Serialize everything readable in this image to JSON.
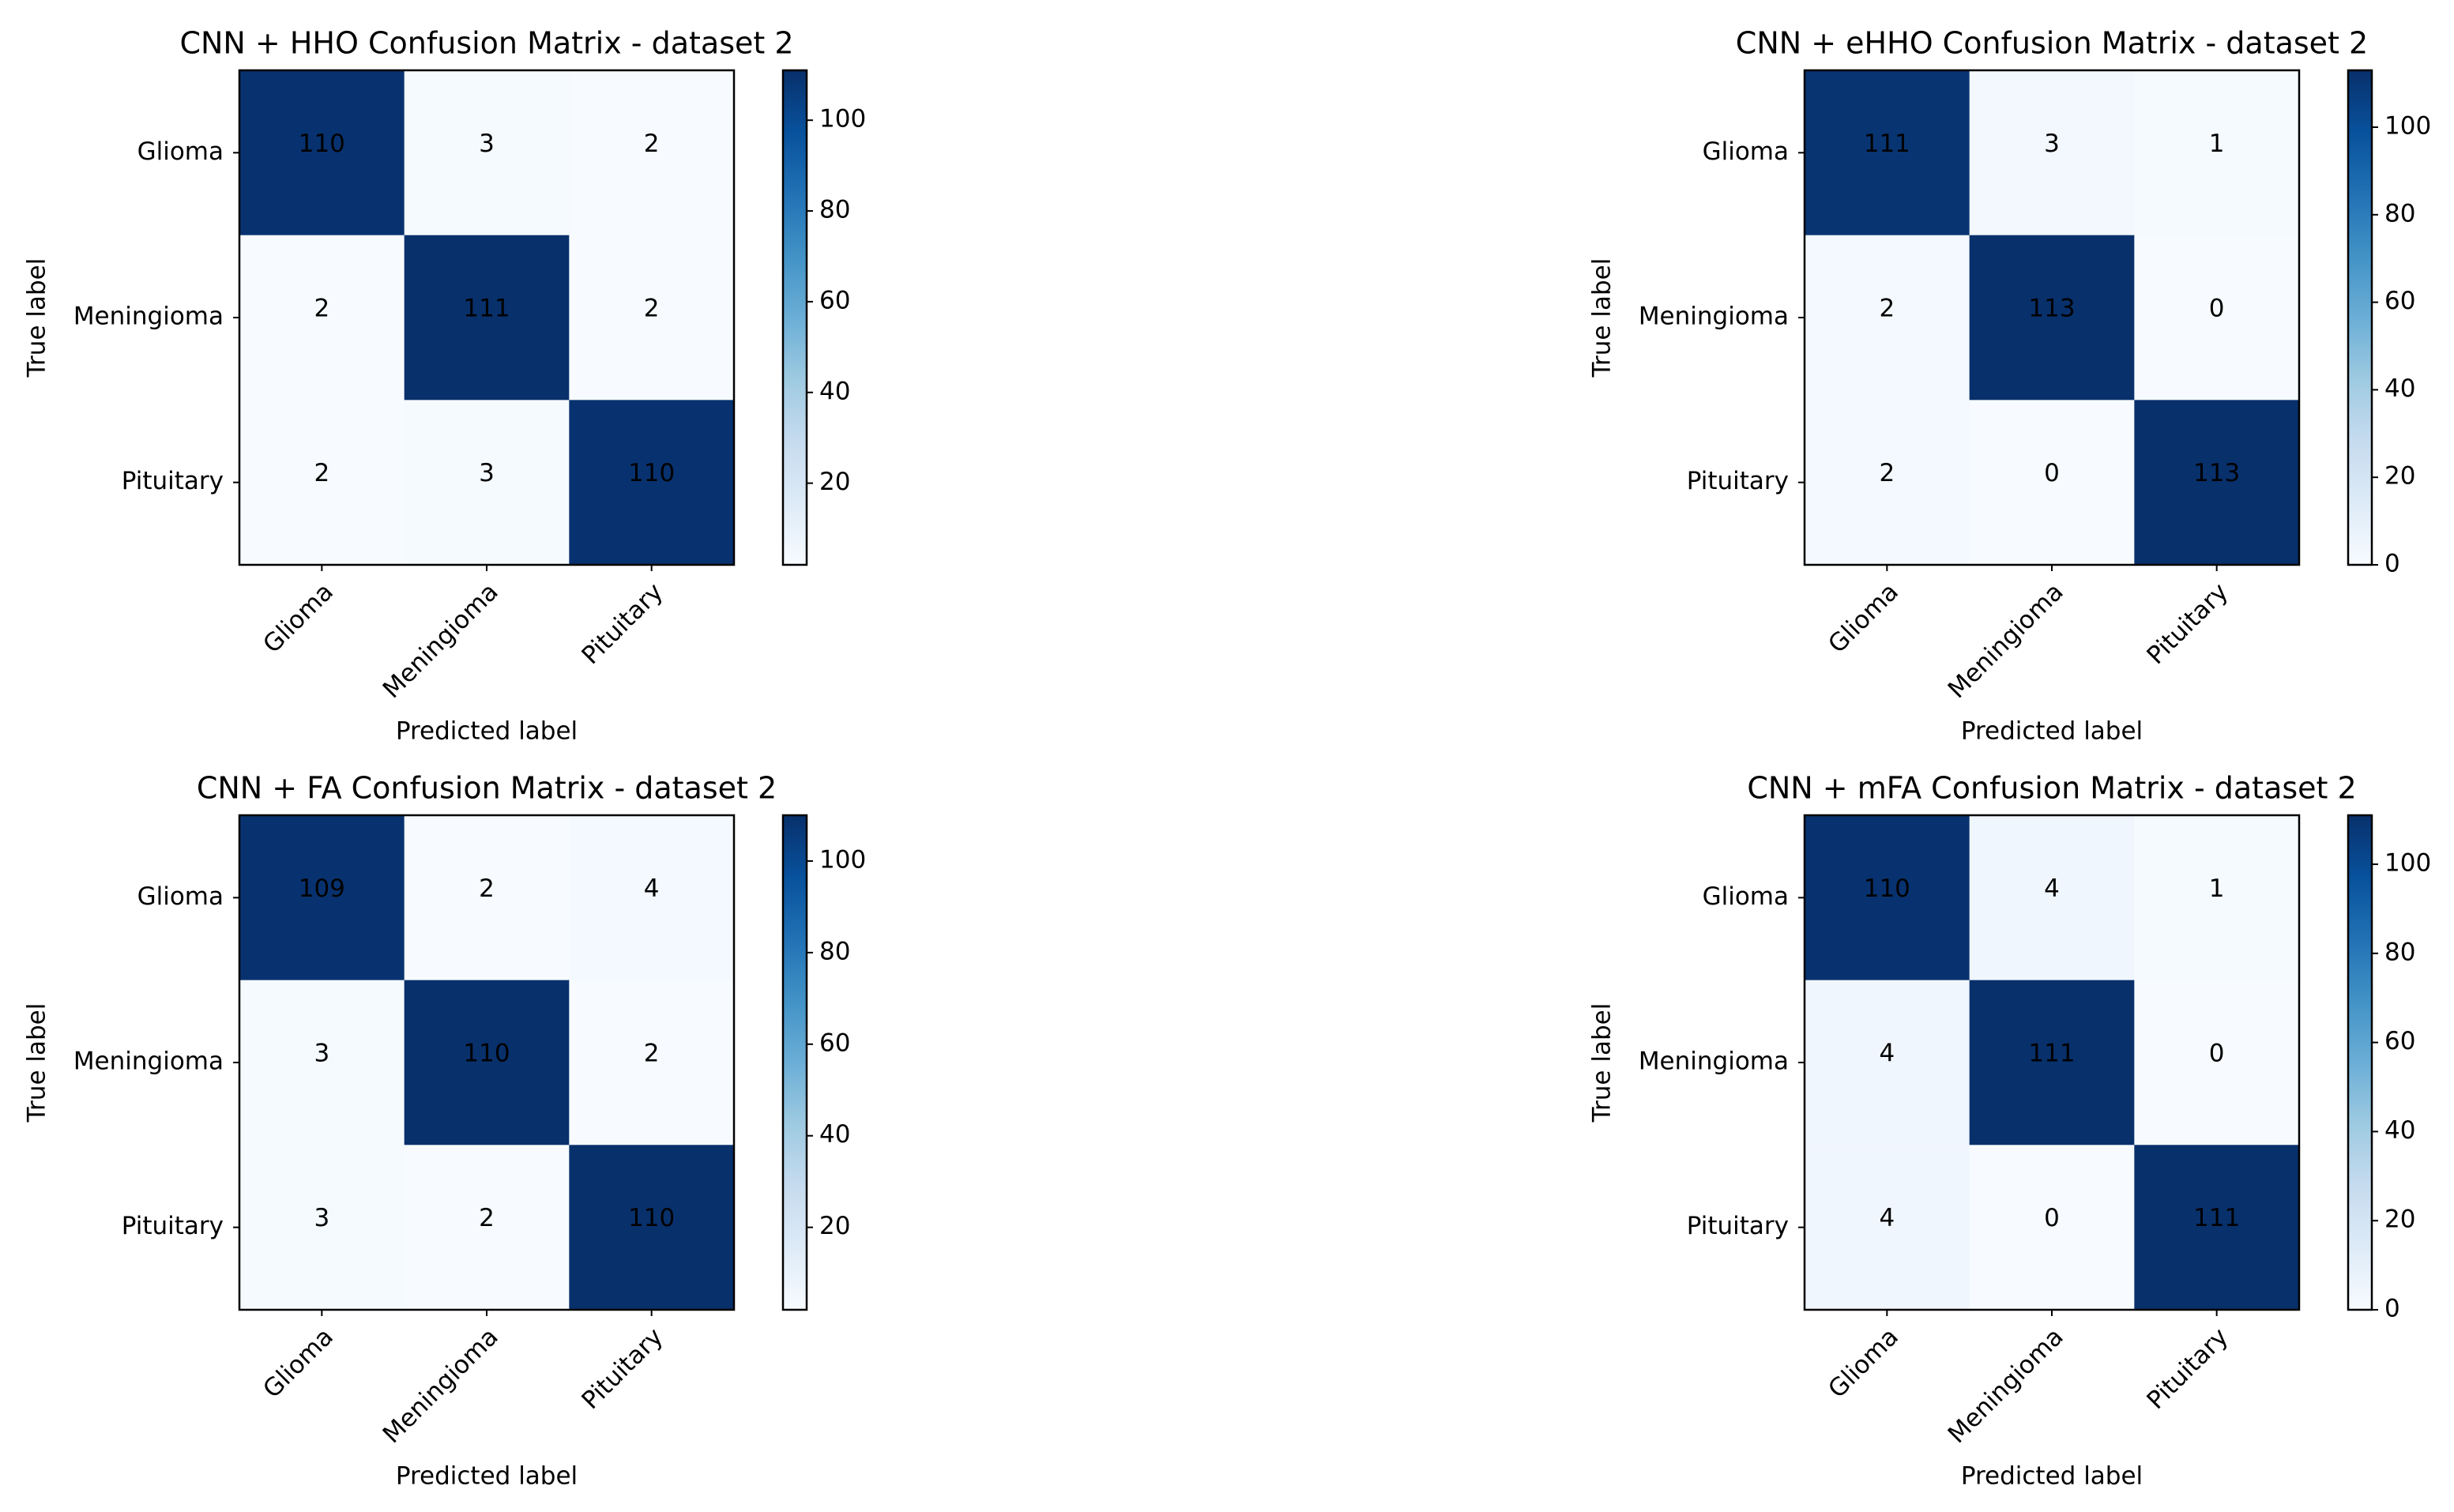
{
  "chart_data": [
    {
      "type": "heatmap",
      "title": "CNN + HHO Confusion Matrix - dataset 2",
      "x_label": "Predicted label",
      "y_label": "True label",
      "x_categories": [
        "Glioma",
        "Meningioma",
        "Pituitary"
      ],
      "y_categories": [
        "Glioma",
        "Meningioma",
        "Pituitary"
      ],
      "values": [
        [
          110,
          3,
          2
        ],
        [
          2,
          111,
          2
        ],
        [
          2,
          3,
          110
        ]
      ],
      "colormap": "Blues",
      "clim": [
        2,
        111
      ],
      "cticks": [
        20,
        40,
        60,
        80,
        100
      ]
    },
    {
      "type": "heatmap",
      "title": "CNN + eHHO Confusion Matrix - dataset 2",
      "x_label": "Predicted label",
      "y_label": "True label",
      "x_categories": [
        "Glioma",
        "Meningioma",
        "Pituitary"
      ],
      "y_categories": [
        "Glioma",
        "Meningioma",
        "Pituitary"
      ],
      "values": [
        [
          111,
          3,
          1
        ],
        [
          2,
          113,
          0
        ],
        [
          2,
          0,
          113
        ]
      ],
      "colormap": "Blues",
      "clim": [
        0,
        113
      ],
      "cticks": [
        0,
        20,
        40,
        60,
        80,
        100
      ]
    },
    {
      "type": "heatmap",
      "title": "CNN + FA Confusion Matrix - dataset 2",
      "x_label": "Predicted label",
      "y_label": "True label",
      "x_categories": [
        "Glioma",
        "Meningioma",
        "Pituitary"
      ],
      "y_categories": [
        "Glioma",
        "Meningioma",
        "Pituitary"
      ],
      "values": [
        [
          109,
          2,
          4
        ],
        [
          3,
          110,
          2
        ],
        [
          3,
          2,
          110
        ]
      ],
      "colormap": "Blues",
      "clim": [
        2,
        110
      ],
      "cticks": [
        20,
        40,
        60,
        80,
        100
      ]
    },
    {
      "type": "heatmap",
      "title": "CNN + mFA Confusion Matrix - dataset 2",
      "x_label": "Predicted label",
      "y_label": "True label",
      "x_categories": [
        "Glioma",
        "Meningioma",
        "Pituitary"
      ],
      "y_categories": [
        "Glioma",
        "Meningioma",
        "Pituitary"
      ],
      "values": [
        [
          110,
          4,
          1
        ],
        [
          4,
          111,
          0
        ],
        [
          4,
          0,
          111
        ]
      ],
      "colormap": "Blues",
      "clim": [
        0,
        111
      ],
      "cticks": [
        0,
        20,
        40,
        60,
        80,
        100
      ]
    }
  ]
}
